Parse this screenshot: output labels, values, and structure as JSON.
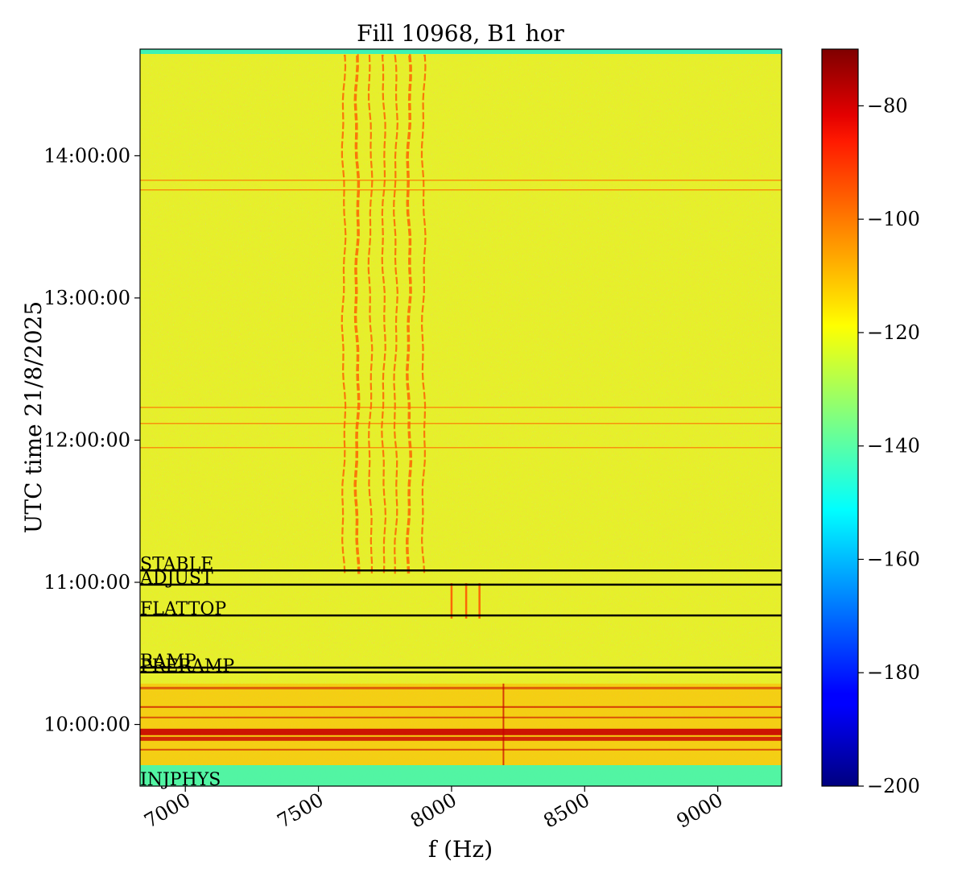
{
  "chart_data": {
    "type": "heatmap",
    "title": "Fill 10968, B1 hor",
    "xlabel": "f (Hz)",
    "ylabel": "UTC time 21/8/2025",
    "xlim": [
      6830,
      9240
    ],
    "ylim": [
      "09:34:00",
      "14:45:00"
    ],
    "x_ticks": [
      "7000",
      "7500",
      "8000",
      "8500",
      "9000"
    ],
    "y_ticks": [
      "10:00:00",
      "11:00:00",
      "12:00:00",
      "13:00:00",
      "14:00:00"
    ],
    "colorbar": {
      "range": [
        -200,
        -70
      ],
      "colormap": "jet",
      "ticks": [
        "−80",
        "−100",
        "−120",
        "−140",
        "−160",
        "−180",
        "−200"
      ]
    },
    "phase_markers": [
      {
        "label": "INJPHYS",
        "time": "09:34:00"
      },
      {
        "label": "PRERAMP",
        "time": "10:22:00"
      },
      {
        "label": "RAMP",
        "time": "10:24:00"
      },
      {
        "label": "FLATTOP",
        "time": "10:46:00"
      },
      {
        "label": "ADJUST",
        "time": "10:59:00"
      },
      {
        "label": "STABLE",
        "time": "11:05:00"
      }
    ]
  }
}
